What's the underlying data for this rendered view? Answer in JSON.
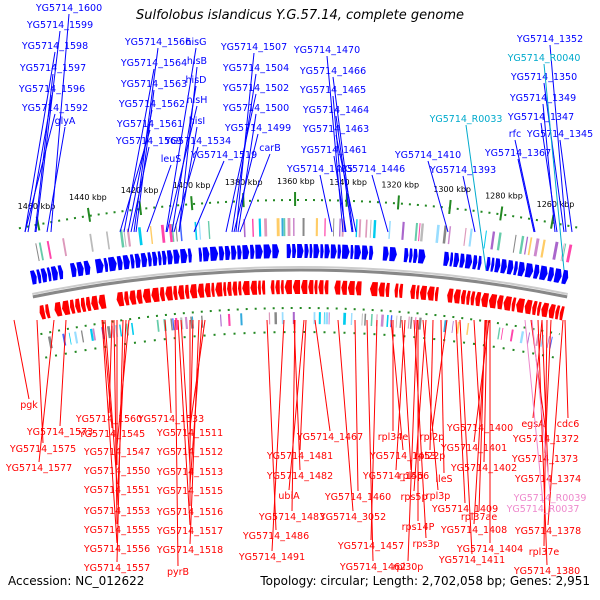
{
  "title": "Sulfolobus islandicus Y.G.57.14, complete genome",
  "accession_text": "Accession: NC_012622",
  "summary_text": "Topology: circular; Length: 2,702,058 bp; Genes: 2,951",
  "colors": {
    "plus_strand": "#0000ff",
    "minus_strand": "#ff0000",
    "rna_plus": "#00aacc",
    "rna_minus": "#ee88cc",
    "tick": "#228822",
    "backbone": "#888888"
  },
  "ruler": [
    "1460 kbp",
    "1440 kbp",
    "1420 kbp",
    "1400 kbp",
    "1380 kbp",
    "1360 kbp",
    "1340 kbp",
    "1320 kbp",
    "1300 kbp",
    "1280 kbp",
    "1260 kbp"
  ],
  "plus_labels": [
    "YG5714_1600",
    "YG5714_1599",
    "YG5714_1598",
    "YG5714_1597",
    "YG5714_1596",
    "YG5714_1592",
    "glyA",
    "YG5714_1566",
    "YG5714_1564",
    "YG5714_1563",
    "YG5714_1562",
    "YG5714_1561",
    "YG5714_1569",
    "leuS",
    "hisG",
    "hisB",
    "hisD",
    "hisH",
    "hisI",
    "YG5714_1534",
    "YG5714_1519",
    "YG5714_1507",
    "YG5714_1504",
    "YG5714_1502",
    "YG5714_1500",
    "YG5714_1499",
    "carB",
    "YG5714_1485",
    "YG5714_1470",
    "YG5714_1466",
    "YG5714_1465",
    "YG5714_1464",
    "YG5714_1463",
    "YG5714_1461",
    "YG5714_1446",
    "YG5714_1410",
    "YG5714_1393",
    "YG5714_1352",
    "YG5714_1350",
    "YG5714_1349",
    "YG5714_1347",
    "rfc",
    "YG5714_1345",
    "YG5714_1367"
  ],
  "plus_rna_labels": [
    "YG5714_R0040",
    "YG5714_R0033"
  ],
  "minus_labels": [
    "pgk",
    "YG5714_1573",
    "YG5714_1575",
    "YG5714_1577",
    "YG5714_1560",
    "YG5714_1545",
    "YG5714_1547",
    "YG5714_1550",
    "YG5714_1551",
    "YG5714_1553",
    "YG5714_1555",
    "YG5714_1556",
    "YG5714_1557",
    "YG5714_1533",
    "YG5714_1511",
    "YG5714_1512",
    "YG5714_1513",
    "YG5714_1515",
    "YG5714_1516",
    "YG5714_1517",
    "YG5714_1518",
    "pyrB",
    "YG5714_1467",
    "YG5714_1481",
    "YG5714_1482",
    "ubiA",
    "YG5714_1483",
    "YG5714_1486",
    "YG5714_1491",
    "rpl34e",
    "YG5714_1453",
    "YG5714_1456",
    "YG5714_1460",
    "YG5714_3052",
    "YG5714_1457",
    "YG5714_1462",
    "rpl2p",
    "rpl22p",
    "rpl5p",
    "rps5p",
    "rps14P",
    "rps3p",
    "rpl30p",
    "ileS",
    "rpl3p",
    "rpl37ae",
    "YG5714_1400",
    "YG5714_1401",
    "YG5714_1402",
    "YG5714_1409",
    "YG5714_1408",
    "YG5714_1404",
    "YG5714_1411",
    "egsA",
    "cdc6",
    "YG5714_1372",
    "YG5714_1373",
    "YG5714_1374",
    "YG5714_1378",
    "rpl37e",
    "YG5714_1380"
  ],
  "minus_rna_labels": [
    "YG5714_R0039",
    "YG5714_R0037"
  ]
}
